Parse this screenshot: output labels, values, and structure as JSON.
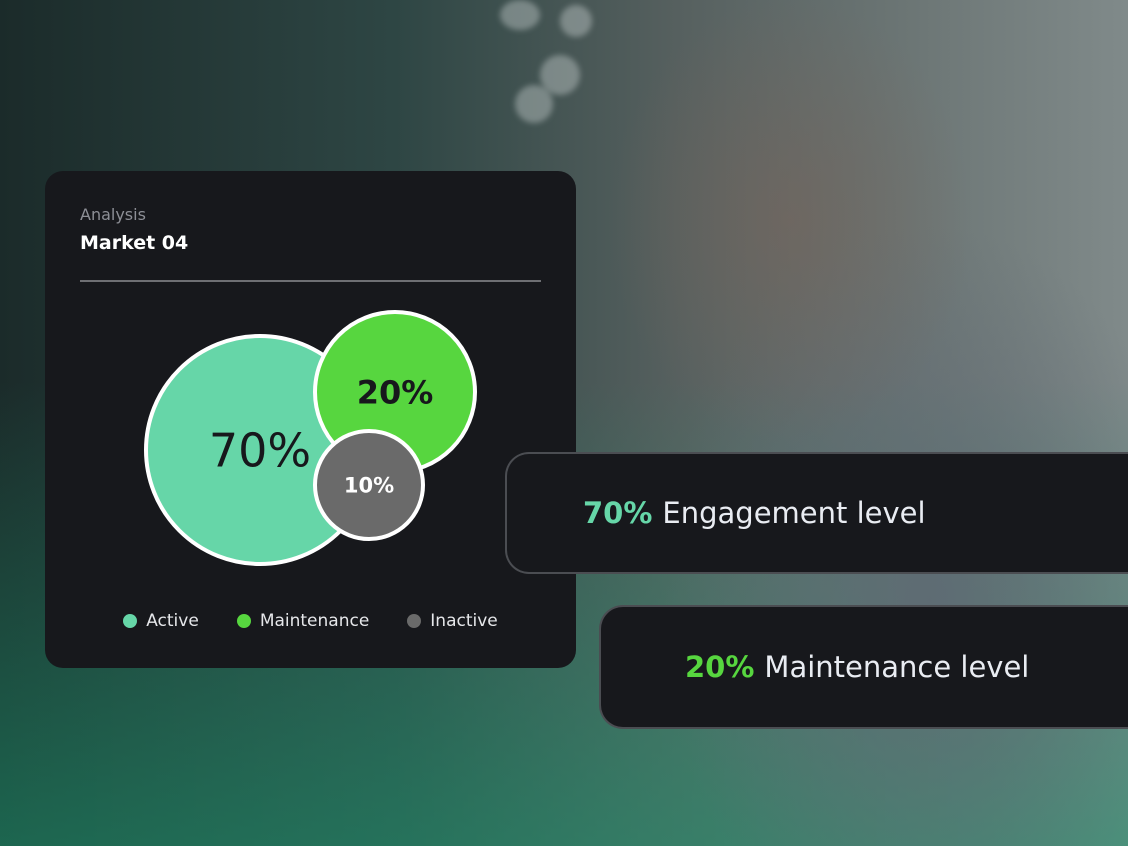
{
  "card": {
    "subtitle": "Analysis",
    "title": "Market 04"
  },
  "chart_data": {
    "type": "bubble",
    "categories": [
      "Active",
      "Maintenance",
      "Inactive"
    ],
    "values": [
      70,
      20,
      10
    ],
    "labels": [
      "70%",
      "20%",
      "10%"
    ],
    "colors": [
      "#66d6a8",
      "#57d63f",
      "#6a6a6a"
    ],
    "legend": "bottom"
  },
  "callouts": [
    {
      "value": "70%",
      "text": "Engagement level",
      "color": "#66d6a8"
    },
    {
      "value": "20%",
      "text": "Maintenance level",
      "color": "#57d63f"
    }
  ]
}
